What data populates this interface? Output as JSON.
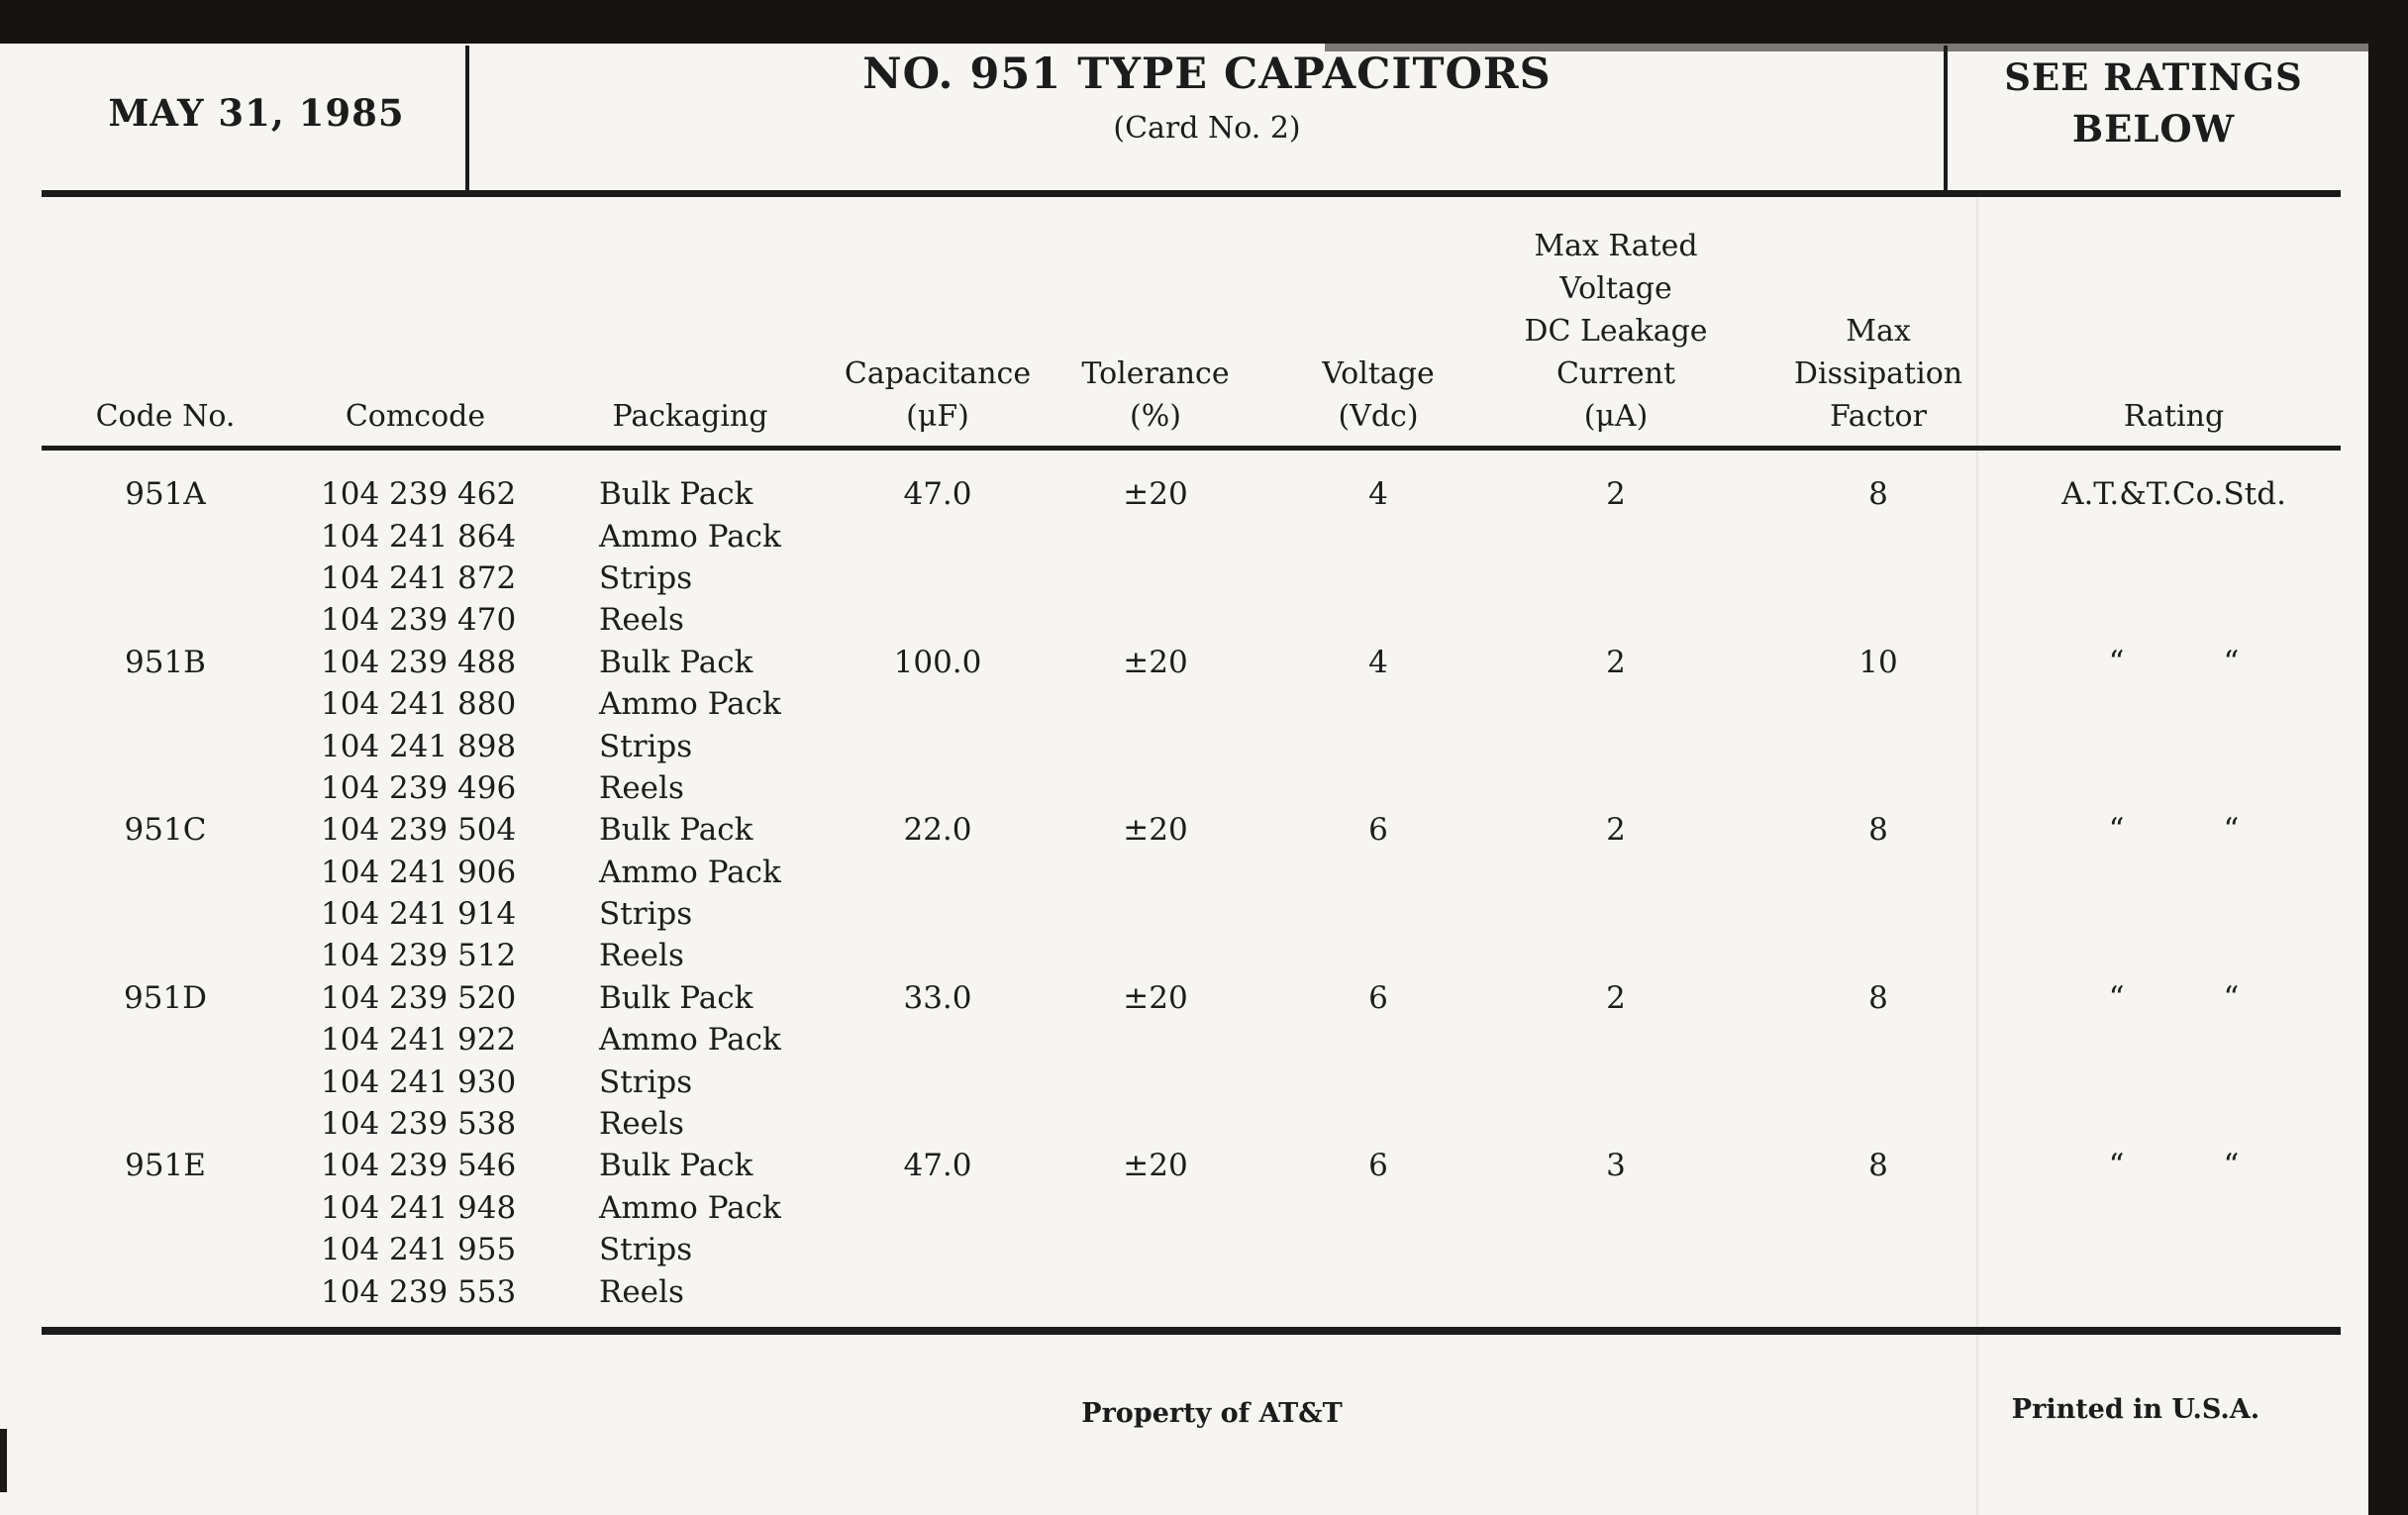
{
  "colors": {
    "paper": "#f6f5f1",
    "ink": "#1c1c1c",
    "scanner_band": "#171310"
  },
  "header": {
    "date": "MAY 31, 1985",
    "title": "NO. 951 TYPE CAPACITORS",
    "subtitle": "(Card No. 2)",
    "ratings_note": [
      "SEE RATINGS",
      "BELOW"
    ]
  },
  "table": {
    "ditto_mark": "“",
    "columns": [
      {
        "label_lines": [
          "Code No."
        ]
      },
      {
        "label_lines": [
          "Comcode"
        ]
      },
      {
        "label_lines": [
          "Packaging"
        ]
      },
      {
        "label_lines": [
          "Capacitance",
          "(μF)"
        ]
      },
      {
        "label_lines": [
          "Tolerance",
          "(%)"
        ]
      },
      {
        "label_lines": [
          "Voltage",
          "(Vdc)"
        ]
      },
      {
        "label_lines": [
          "Max Rated",
          "Voltage",
          "DC Leakage",
          "Current",
          "(μA)"
        ]
      },
      {
        "label_lines": [
          "Max",
          "Dissipation",
          "Factor"
        ]
      },
      {
        "label_lines": [
          "Rating"
        ]
      }
    ],
    "groups": [
      {
        "code": "951A",
        "capacitance": "47.0",
        "tolerance": "±20",
        "voltage": "4",
        "leakage_current": "2",
        "dissipation_factor": "8",
        "rating": "A.T.&T.Co.Std.",
        "packages": [
          {
            "comcode": "104 239 462",
            "packaging": "Bulk Pack"
          },
          {
            "comcode": "104 241 864",
            "packaging": "Ammo Pack"
          },
          {
            "comcode": "104 241 872",
            "packaging": "Strips"
          },
          {
            "comcode": "104 239 470",
            "packaging": "Reels"
          }
        ]
      },
      {
        "code": "951B",
        "capacitance": "100.0",
        "tolerance": "±20",
        "voltage": "4",
        "leakage_current": "2",
        "dissipation_factor": "10",
        "rating_is_ditto": true,
        "packages": [
          {
            "comcode": "104 239 488",
            "packaging": "Bulk Pack"
          },
          {
            "comcode": "104 241 880",
            "packaging": "Ammo Pack"
          },
          {
            "comcode": "104 241 898",
            "packaging": "Strips"
          },
          {
            "comcode": "104 239 496",
            "packaging": "Reels"
          }
        ]
      },
      {
        "code": "951C",
        "capacitance": "22.0",
        "tolerance": "±20",
        "voltage": "6",
        "leakage_current": "2",
        "dissipation_factor": "8",
        "rating_is_ditto": true,
        "packages": [
          {
            "comcode": "104 239 504",
            "packaging": "Bulk Pack"
          },
          {
            "comcode": "104 241 906",
            "packaging": "Ammo Pack"
          },
          {
            "comcode": "104 241 914",
            "packaging": "Strips"
          },
          {
            "comcode": "104 239 512",
            "packaging": "Reels"
          }
        ]
      },
      {
        "code": "951D",
        "capacitance": "33.0",
        "tolerance": "±20",
        "voltage": "6",
        "leakage_current": "2",
        "dissipation_factor": "8",
        "rating_is_ditto": true,
        "packages": [
          {
            "comcode": "104 239 520",
            "packaging": "Bulk Pack"
          },
          {
            "comcode": "104 241 922",
            "packaging": "Ammo Pack"
          },
          {
            "comcode": "104 241 930",
            "packaging": "Strips"
          },
          {
            "comcode": "104 239 538",
            "packaging": "Reels"
          }
        ]
      },
      {
        "code": "951E",
        "capacitance": "47.0",
        "tolerance": "±20",
        "voltage": "6",
        "leakage_current": "3",
        "dissipation_factor": "8",
        "rating_is_ditto": true,
        "packages": [
          {
            "comcode": "104 239 546",
            "packaging": "Bulk Pack"
          },
          {
            "comcode": "104 241 948",
            "packaging": "Ammo Pack"
          },
          {
            "comcode": "104 241 955",
            "packaging": "Strips"
          },
          {
            "comcode": "104 239 553",
            "packaging": "Reels"
          }
        ]
      }
    ]
  },
  "footer": {
    "property_notice": "Property of AT&T",
    "printed_notice": "Printed in U.S.A."
  }
}
